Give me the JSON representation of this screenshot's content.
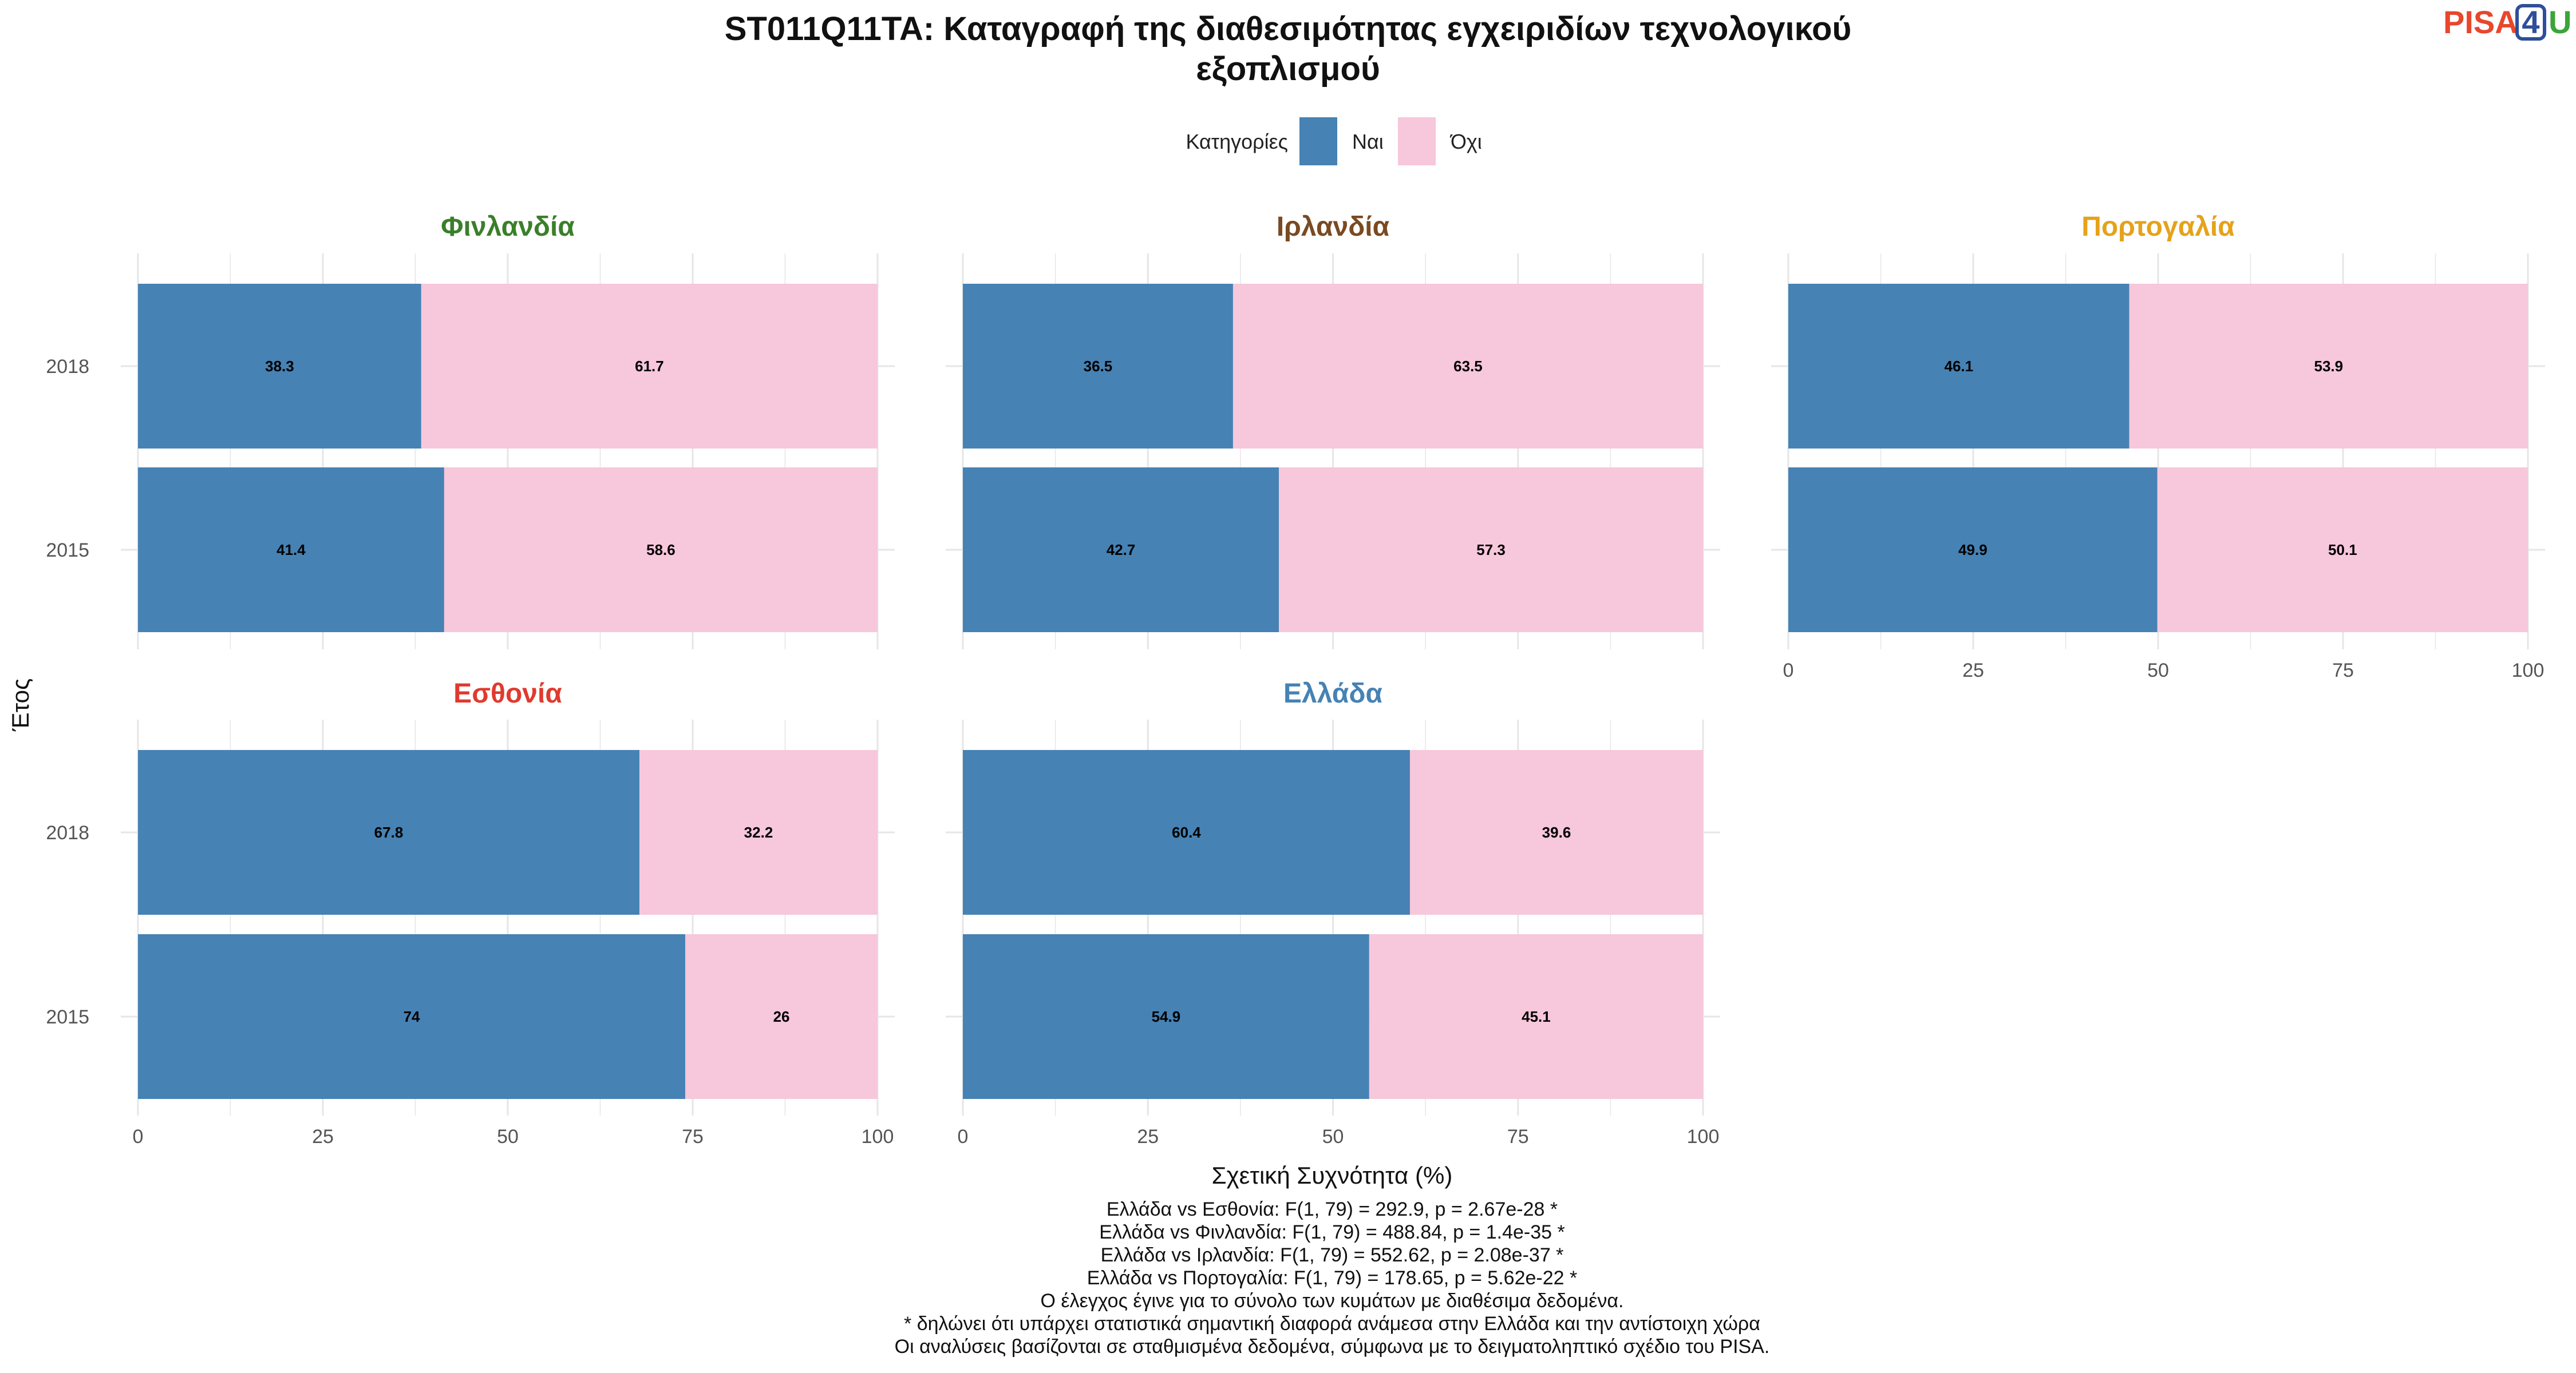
{
  "title_lines": [
    "ST011Q11TA: Καταγραφή της διαθεσιμότητας εγχειριδίων τεχνολογικού",
    "εξοπλισμού"
  ],
  "logo": {
    "part1": "PISA",
    "part2": "4",
    "part3": "U"
  },
  "colors": {
    "yes": "#4682B4",
    "no": "#F7C7DB",
    "grid": "#E6E6E6",
    "logo_pisa": "#E8472C",
    "logo_4": "#2F4E9B",
    "logo_u": "#3BA43B"
  },
  "chart_data": {
    "type": "bar",
    "orientation": "horizontal",
    "stacked": true,
    "legend": {
      "title": "Κατηγορίες",
      "placement": "top",
      "entries": [
        "Ναι",
        "Όχι"
      ]
    },
    "xlabel": "Σχετική Συχνότητα (%)",
    "ylabel": "Έτος",
    "xlim": [
      0,
      100
    ],
    "xticks": [
      "0",
      "25",
      "50",
      "75",
      "100"
    ],
    "categories": [
      "2018",
      "2015"
    ],
    "grid": true,
    "facets": [
      {
        "name": "Φινλανδία",
        "color": "#3A7F2A",
        "series": [
          {
            "name": "Ναι",
            "values": [
              38.3,
              41.4
            ]
          },
          {
            "name": "Όχι",
            "values": [
              61.7,
              58.6
            ]
          }
        ],
        "labels_yes": [
          "38.3",
          "41.4"
        ],
        "labels_no": [
          "61.7",
          "58.6"
        ]
      },
      {
        "name": "Ιρλανδία",
        "color": "#7A4A22",
        "series": [
          {
            "name": "Ναι",
            "values": [
              36.5,
              42.7
            ]
          },
          {
            "name": "Όχι",
            "values": [
              63.5,
              57.3
            ]
          }
        ],
        "labels_yes": [
          "36.5",
          "42.7"
        ],
        "labels_no": [
          "63.5",
          "57.3"
        ]
      },
      {
        "name": "Πορτογαλία",
        "color": "#E5A21A",
        "series": [
          {
            "name": "Ναι",
            "values": [
              46.1,
              49.9
            ]
          },
          {
            "name": "Όχι",
            "values": [
              53.9,
              50.1
            ]
          }
        ],
        "labels_yes": [
          "46.1",
          "49.9"
        ],
        "labels_no": [
          "53.9",
          "50.1"
        ]
      },
      {
        "name": "Εσθονία",
        "color": "#E03A2E",
        "series": [
          {
            "name": "Ναι",
            "values": [
              67.8,
              74
            ]
          },
          {
            "name": "Όχι",
            "values": [
              32.2,
              26
            ]
          }
        ],
        "labels_yes": [
          "67.8",
          "74"
        ],
        "labels_no": [
          "32.2",
          "26"
        ]
      },
      {
        "name": "Ελλάδα",
        "color": "#4682B4",
        "series": [
          {
            "name": "Ναι",
            "values": [
              60.4,
              54.9
            ]
          },
          {
            "name": "Όχι",
            "values": [
              39.6,
              45.1
            ]
          }
        ],
        "labels_yes": [
          "60.4",
          "54.9"
        ],
        "labels_no": [
          "39.6",
          "45.1"
        ]
      }
    ]
  },
  "notes": [
    "Ελλάδα vs Εσθονία: F(1, 79) = 292.9, p = 2.67e-28 *",
    "Ελλάδα vs Φινλανδία: F(1, 79) = 488.84, p = 1.4e-35 *",
    "Ελλάδα vs Ιρλανδία: F(1, 79) = 552.62, p = 2.08e-37 *",
    "Ελλάδα vs Πορτογαλία: F(1, 79) = 178.65, p = 5.62e-22 *",
    "Ο έλεγχος έγινε για το σύνολο των κυμάτων με διαθέσιμα δεδομένα.",
    "* δηλώνει ότι υπάρχει στατιστικά σημαντική διαφορά ανάμεσα στην Ελλάδα και την αντίστοιχη χώρα",
    "Οι αναλύσεις βασίζονται σε σταθμισμένα δεδομένα, σύμφωνα με το δειγματοληπτικό σχέδιο του PISA."
  ]
}
